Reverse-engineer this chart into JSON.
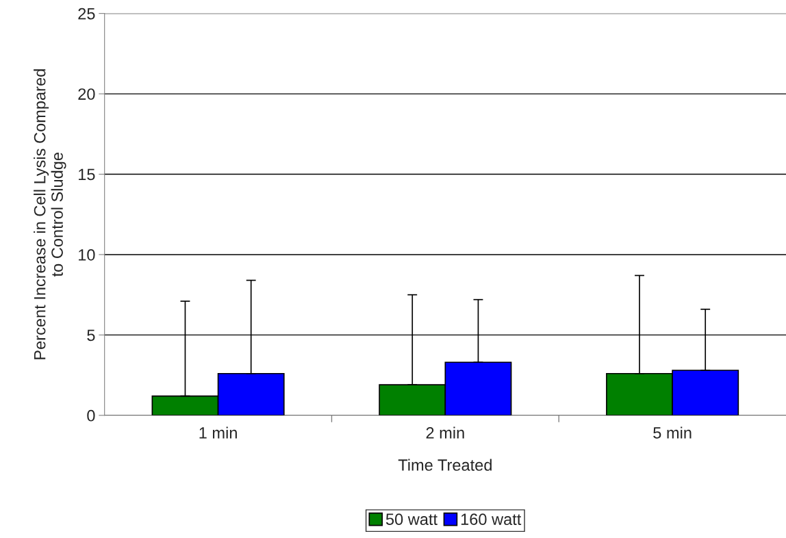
{
  "chart_data": {
    "type": "bar",
    "xlabel": "Time Treated",
    "ylabel": "Percent Increase in Cell Lysis Compared\nto Control Sludge",
    "categories": [
      "1 min",
      "2 min",
      "5 min"
    ],
    "series": [
      {
        "name": "50 watt",
        "color": "#008000",
        "values": [
          1.2,
          1.9,
          2.6
        ],
        "errors": [
          [
            1.2,
            7.1
          ],
          [
            1.9,
            7.5
          ],
          [
            2.6,
            8.7
          ]
        ]
      },
      {
        "name": "160 watt",
        "color": "#0000ff",
        "values": [
          2.6,
          3.3,
          2.8
        ],
        "errors": [
          [
            2.6,
            8.4
          ],
          [
            3.3,
            7.2
          ],
          [
            2.8,
            6.6
          ]
        ]
      }
    ],
    "ylim": [
      0,
      25
    ],
    "yticks": [
      0,
      5,
      10,
      15,
      20,
      25
    ],
    "grid": "y",
    "legend": "bottom"
  }
}
